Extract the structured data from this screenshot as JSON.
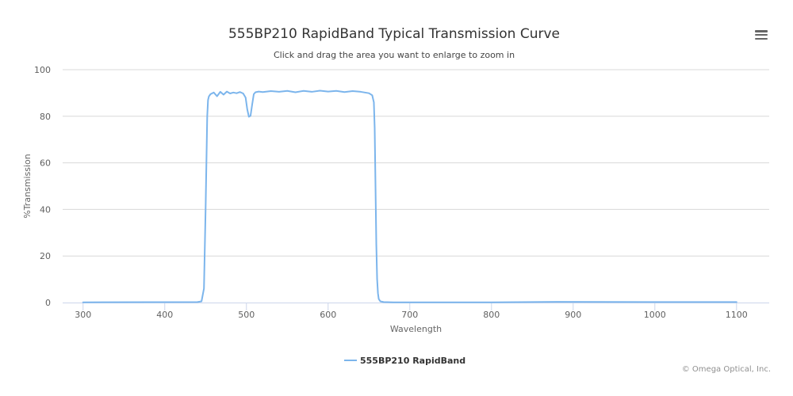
{
  "chart_data": {
    "type": "line",
    "title": "555BP210 RapidBand Typical Transmission Curve",
    "subtitle": "Click and drag the area you want to enlarge to zoom in",
    "xlabel": "Wavelength",
    "ylabel": "%Transmission",
    "xlim": [
      275,
      1140
    ],
    "ylim": [
      0,
      100
    ],
    "x_ticks": [
      300,
      400,
      500,
      600,
      700,
      800,
      900,
      1000,
      1100
    ],
    "y_ticks": [
      0,
      20,
      40,
      60,
      80,
      100
    ],
    "grid": "horizontal",
    "legend": "bottom-center",
    "series": [
      {
        "name": "555BP210 RapidBand",
        "color": "#7cb5ec",
        "x": [
          300,
          440,
          445,
          448,
          450,
          452,
          453,
          454,
          456,
          460,
          464,
          468,
          472,
          476,
          480,
          484,
          488,
          492,
          496,
          499,
          501,
          503,
          505,
          507,
          509,
          511,
          515,
          520,
          530,
          540,
          550,
          560,
          570,
          580,
          590,
          600,
          610,
          620,
          630,
          640,
          650,
          654,
          656,
          657,
          658,
          659,
          660,
          661,
          662,
          664,
          668,
          680,
          700,
          800,
          880,
          1000,
          1100
        ],
        "y": [
          0.1,
          0.2,
          0.5,
          6,
          40,
          80,
          87,
          88.5,
          89.5,
          90.2,
          88.6,
          90.5,
          89.3,
          90.6,
          89.8,
          90.2,
          89.9,
          90.4,
          89.8,
          88,
          83,
          79.8,
          80.2,
          85,
          89.5,
          90.3,
          90.6,
          90.4,
          90.8,
          90.5,
          90.9,
          90.3,
          90.9,
          90.5,
          91,
          90.6,
          90.9,
          90.4,
          90.8,
          90.5,
          89.9,
          89,
          86,
          75,
          50,
          25,
          10,
          4,
          1.5,
          0.5,
          0.2,
          0.1,
          0.1,
          0.1,
          0.3,
          0.2,
          0.2
        ]
      }
    ]
  },
  "credits": "© Omega Optical, Inc.",
  "menu_icon": "hamburger-menu-icon"
}
